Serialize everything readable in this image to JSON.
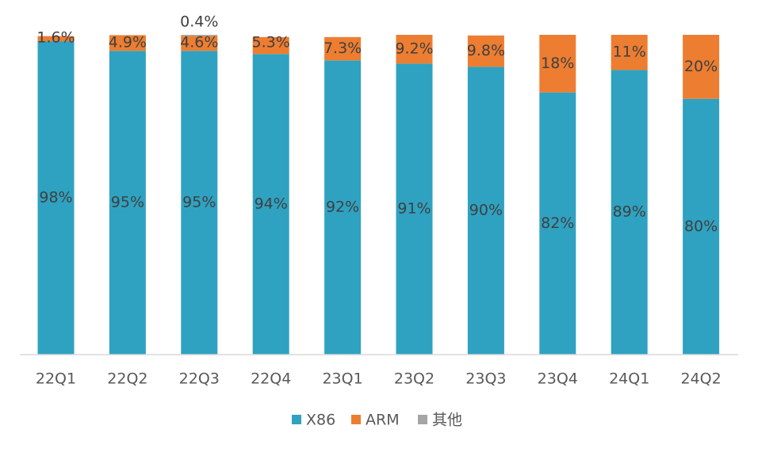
{
  "chart_data": {
    "type": "bar",
    "stacked": true,
    "categories": [
      "22Q1",
      "22Q2",
      "22Q3",
      "22Q4",
      "23Q1",
      "23Q2",
      "23Q3",
      "23Q4",
      "24Q1",
      "24Q2"
    ],
    "series": [
      {
        "name": "X86",
        "color": "#2fa2c1",
        "values": [
          98,
          95,
          95,
          94,
          92,
          91,
          90,
          82,
          89,
          80
        ],
        "labels": [
          "98%",
          "95%",
          "95%",
          "94%",
          "92%",
          "91%",
          "90%",
          "82%",
          "89%",
          "80%"
        ]
      },
      {
        "name": "ARM",
        "color": "#ed7d31",
        "values": [
          1.6,
          4.9,
          4.6,
          5.3,
          7.3,
          9.2,
          9.8,
          18,
          11,
          20
        ],
        "labels": [
          "1.6%",
          "4.9%",
          "4.6%",
          "5.3%",
          "7.3%",
          "9.2%",
          "9.8%",
          "18%",
          "11%",
          "20%"
        ]
      },
      {
        "name": "其他",
        "color": "#a5a5a5",
        "values": [
          0,
          0,
          0.4,
          0,
          0,
          0,
          0,
          0,
          0,
          0
        ],
        "labels": [
          "",
          "",
          "0.4%",
          "",
          "",
          "",
          "",
          "",
          "",
          ""
        ]
      }
    ],
    "ylim": [
      0,
      100
    ],
    "title": "",
    "xlabel": "",
    "ylabel": "",
    "grid": false,
    "legend": "bottom"
  }
}
